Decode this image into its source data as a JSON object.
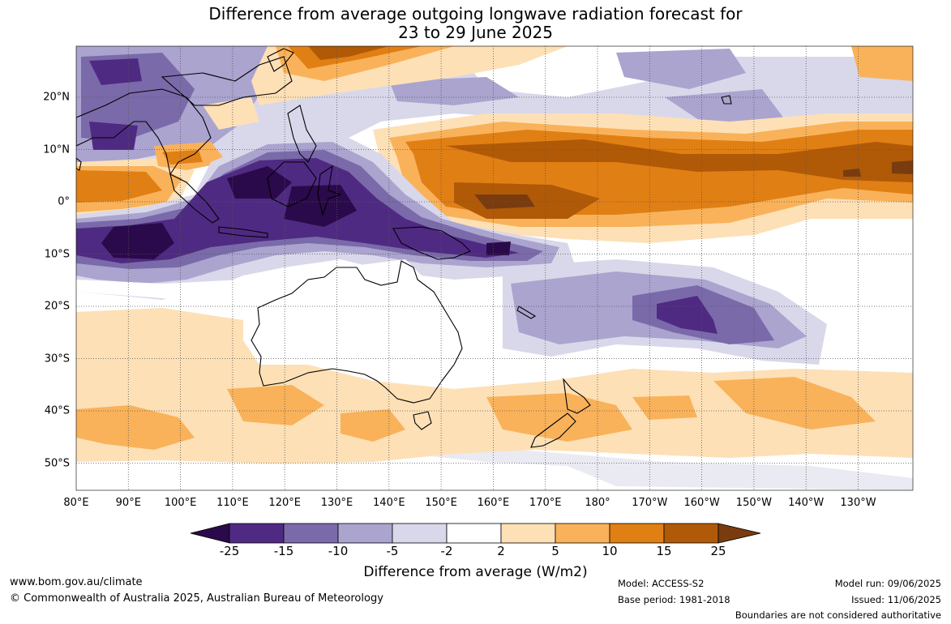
{
  "title": {
    "line1": "Difference from average outgoing longwave radiation forecast for",
    "line2": "23 to 29 June 2025"
  },
  "map": {
    "longitude_labels": [
      "80°E",
      "90°E",
      "100°E",
      "110°E",
      "120°E",
      "130°E",
      "140°E",
      "150°E",
      "160°E",
      "170°E",
      "180°",
      "170°W",
      "160°W",
      "150°W",
      "140°W",
      "130°W"
    ],
    "latitude_labels": [
      "20°N",
      "10°N",
      "0°",
      "10°S",
      "20°S",
      "30°S",
      "40°S",
      "50°S"
    ],
    "gridline_style": "dotted"
  },
  "colorbar": {
    "tick_labels": [
      "-25",
      "-15",
      "-10",
      "-5",
      "-2",
      "2",
      "5",
      "10",
      "15",
      "25"
    ],
    "colors": [
      "#2a0a4a",
      "#4f2a82",
      "#7a6aaa",
      "#aaa4cf",
      "#d9d8ea",
      "#ffffff",
      "#fde0b6",
      "#f9b25a",
      "#e07f14",
      "#b05a08",
      "#7a3c0e"
    ],
    "title": "Difference from average (W/m2)"
  },
  "footer": {
    "url": "www.bom.gov.au/climate",
    "copyright": "© Commonwealth of Australia 2025, Australian Bureau of Meteorology",
    "model": "Model: ACCESS-S2",
    "base_period": "Base period: 1981-2018",
    "model_run": "Model run: 09/06/2025",
    "issued": "Issued: 11/06/2025",
    "disclaimer": "Boundaries are not considered authoritative"
  }
}
